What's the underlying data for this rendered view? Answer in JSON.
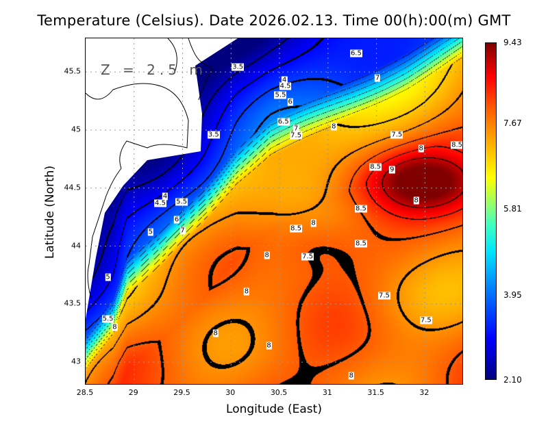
{
  "title": "Temperature (Celsius). Date 2026.02.13. Time 00(h):00(m) GMT",
  "depth_label": "Z = 2.5 m",
  "chart_data": {
    "type": "heatmap",
    "title": "Temperature (Celsius). Date 2026.02.13. Time 00(h):00(m) GMT",
    "xlabel": "Longitude (East)",
    "ylabel": "Latitude (North)",
    "xlim": [
      28.5,
      32.4
    ],
    "ylim": [
      42.8,
      45.79
    ],
    "xticks": [
      "28.5",
      "29",
      "29.5",
      "30",
      "30.5",
      "31",
      "31.5",
      "32"
    ],
    "xtick_values": [
      28.5,
      29,
      29.5,
      30,
      30.5,
      31,
      31.5,
      32
    ],
    "yticks": [
      "45.5",
      "45",
      "44.5",
      "44",
      "43.5",
      "43"
    ],
    "ytick_values": [
      45.5,
      45,
      44.5,
      44,
      43.5,
      43
    ],
    "grid": true,
    "colorbar": {
      "min": 2.1,
      "max": 9.43,
      "labels": [
        "9.43",
        "7.67",
        "5.81",
        "3.95",
        "2.10"
      ],
      "label_values": [
        9.43,
        7.67,
        5.81,
        3.95,
        2.1
      ]
    },
    "contour_interval": 0.5,
    "contour_labels": [
      {
        "text": "3.5",
        "lon": 30.07,
        "lat": 45.54
      },
      {
        "text": "4",
        "lon": 30.55,
        "lat": 45.43
      },
      {
        "text": "4.5",
        "lon": 30.56,
        "lat": 45.38
      },
      {
        "text": "5.5",
        "lon": 30.51,
        "lat": 45.3
      },
      {
        "text": "6",
        "lon": 30.61,
        "lat": 45.24
      },
      {
        "text": "6.5",
        "lon": 31.29,
        "lat": 45.66
      },
      {
        "text": "7",
        "lon": 31.51,
        "lat": 45.45
      },
      {
        "text": "6.5",
        "lon": 30.54,
        "lat": 45.07
      },
      {
        "text": "7",
        "lon": 30.67,
        "lat": 45.01
      },
      {
        "text": "7.5",
        "lon": 30.67,
        "lat": 44.95
      },
      {
        "text": "8",
        "lon": 31.06,
        "lat": 45.03
      },
      {
        "text": "7.5",
        "lon": 31.71,
        "lat": 44.96
      },
      {
        "text": "3.5",
        "lon": 29.82,
        "lat": 44.96
      },
      {
        "text": "8",
        "lon": 31.96,
        "lat": 44.84
      },
      {
        "text": "8.5",
        "lon": 32.33,
        "lat": 44.87
      },
      {
        "text": "8.5",
        "lon": 31.49,
        "lat": 44.68
      },
      {
        "text": "9",
        "lon": 31.66,
        "lat": 44.66
      },
      {
        "text": "4",
        "lon": 29.32,
        "lat": 44.43
      },
      {
        "text": "4.5",
        "lon": 29.27,
        "lat": 44.37
      },
      {
        "text": "5.5",
        "lon": 29.49,
        "lat": 44.38
      },
      {
        "text": "8",
        "lon": 31.91,
        "lat": 44.39
      },
      {
        "text": "8.5",
        "lon": 31.34,
        "lat": 44.32
      },
      {
        "text": "6",
        "lon": 29.44,
        "lat": 44.23
      },
      {
        "text": "7",
        "lon": 29.5,
        "lat": 44.13
      },
      {
        "text": "5",
        "lon": 29.17,
        "lat": 44.12
      },
      {
        "text": "8.5",
        "lon": 30.67,
        "lat": 44.15
      },
      {
        "text": "8",
        "lon": 30.85,
        "lat": 44.2
      },
      {
        "text": "8.5",
        "lon": 31.34,
        "lat": 44.02
      },
      {
        "text": "8",
        "lon": 30.37,
        "lat": 43.92
      },
      {
        "text": "7.5",
        "lon": 30.79,
        "lat": 43.91
      },
      {
        "text": "5",
        "lon": 28.73,
        "lat": 43.73
      },
      {
        "text": "8",
        "lon": 30.16,
        "lat": 43.61
      },
      {
        "text": "7.5",
        "lon": 31.58,
        "lat": 43.57
      },
      {
        "text": "5.5",
        "lon": 28.73,
        "lat": 43.37
      },
      {
        "text": "8",
        "lon": 28.8,
        "lat": 43.3
      },
      {
        "text": "7.5",
        "lon": 32.01,
        "lat": 43.36
      },
      {
        "text": "8",
        "lon": 29.84,
        "lat": 43.25
      },
      {
        "text": "8",
        "lon": 30.39,
        "lat": 43.14
      },
      {
        "text": "8",
        "lon": 31.24,
        "lat": 42.88
      }
    ]
  }
}
